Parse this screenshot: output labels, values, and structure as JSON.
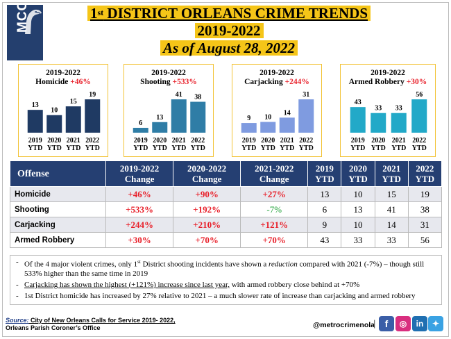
{
  "logo": {
    "text": "MCC"
  },
  "title": {
    "line1_pre": "1",
    "line1_sup": "st",
    "line1_post": " DISTRICT ORLEANS CRIME TRENDS",
    "line2": "2019-2022",
    "line3": "As of August 28, 2022"
  },
  "colors": {
    "title_bg": "#f5c518",
    "header_bg": "#253f72",
    "increase": "#e8202a",
    "decrease": "#22a33a",
    "panel_border": "#f2c233"
  },
  "chart_data": [
    {
      "type": "bar",
      "title": "Homicide",
      "period": "2019-2022",
      "change": "+46%",
      "categories": [
        "2019 YTD",
        "2020 YTD",
        "2021 YTD",
        "2022 YTD"
      ],
      "values": [
        13,
        10,
        15,
        19
      ],
      "color": "#1f3a63",
      "ylim": [
        0,
        19
      ]
    },
    {
      "type": "bar",
      "title": "Shooting",
      "period": "2019-2022",
      "change": "+533%",
      "categories": [
        "2019 YTD",
        "2020 YTD",
        "2021 YTD",
        "2022 YTD"
      ],
      "values": [
        6,
        13,
        41,
        38
      ],
      "color": "#2f7da6",
      "ylim": [
        0,
        41
      ]
    },
    {
      "type": "bar",
      "title": "Carjacking",
      "period": "2019-2022",
      "change": "+244%",
      "categories": [
        "2019 YTD",
        "2020 YTD",
        "2021 YTD",
        "2022 YTD"
      ],
      "values": [
        9,
        10,
        14,
        31
      ],
      "color": "#7f9be0",
      "ylim": [
        0,
        31
      ]
    },
    {
      "type": "bar",
      "title": "Armed Robbery",
      "period": "2019-2022",
      "change": "+30%",
      "categories": [
        "2019 YTD",
        "2020 YTD",
        "2021 YTD",
        "2022 YTD"
      ],
      "values": [
        43,
        33,
        33,
        56
      ],
      "color": "#22a9c8",
      "ylim": [
        0,
        56
      ]
    }
  ],
  "table": {
    "headers": [
      {
        "l1": "Offense",
        "l2": ""
      },
      {
        "l1": "2019-2022",
        "l2": "Change"
      },
      {
        "l1": "2020-2022",
        "l2": "Change"
      },
      {
        "l1": "2021-2022",
        "l2": "Change"
      },
      {
        "l1": "2019",
        "l2": "YTD"
      },
      {
        "l1": "2020",
        "l2": "YTD"
      },
      {
        "l1": "2021",
        "l2": "YTD"
      },
      {
        "l1": "2022",
        "l2": "YTD"
      }
    ],
    "rows": [
      {
        "offense": "Homicide",
        "c1": "+46%",
        "c2": "+90%",
        "c3": "+27%",
        "y2019": "13",
        "y2020": "10",
        "y2021": "15",
        "y2022": "19"
      },
      {
        "offense": "Shooting",
        "c1": "+533%",
        "c2": "+192%",
        "c3": "-7%",
        "y2019": "6",
        "y2020": "13",
        "y2021": "41",
        "y2022": "38"
      },
      {
        "offense": "Carjacking",
        "c1": "+244%",
        "c2": "+210%",
        "c3": "+121%",
        "y2019": "9",
        "y2020": "10",
        "y2021": "14",
        "y2022": "31"
      },
      {
        "offense": "Armed Robbery",
        "c1": "+30%",
        "c2": "+70%",
        "c3": "+70%",
        "y2019": "43",
        "y2020": "33",
        "y2021": "33",
        "y2022": "56"
      }
    ]
  },
  "notes": {
    "n1_a": "Of the 4 major violent crimes, only 1",
    "n1_sup": "st",
    "n1_b": " District shooting incidents have shown a ",
    "n1_em": "reduction",
    "n1_c": " compared with 2021 (-7%) – though still 533% higher than the same time in 2019",
    "n2_u": "Carjacking has shown the highest (+121%) increase since last year,",
    "n2_rest": " with armed robbery close behind at +70%",
    "n3": "1st District homicide has increased by 27% relative to 2021 – a much slower rate of increase than carjacking and armed robbery"
  },
  "footer": {
    "source_label": "Source:",
    "source_text": " City of New Orleans Calls for Service 2019- 2022,",
    "source_line2": "Orleans Parish Coroner’s Office",
    "handle": "@metrocrimenola",
    "separator": "|",
    "social": [
      {
        "name": "facebook",
        "glyph": "f"
      },
      {
        "name": "instagram",
        "glyph": "◎"
      },
      {
        "name": "linkedin",
        "glyph": "in"
      },
      {
        "name": "twitter",
        "glyph": "✦"
      }
    ]
  }
}
